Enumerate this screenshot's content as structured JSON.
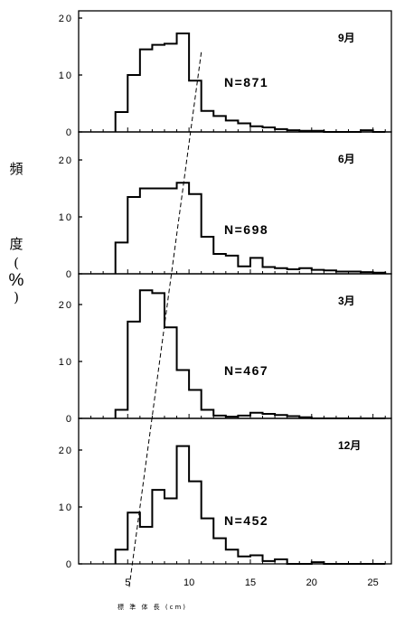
{
  "ylabel": [
    "頻",
    "度",
    "(",
    "%",
    ")"
  ],
  "xlabel": "標 準 体 長 (cm)",
  "chart_data": [
    {
      "type": "bar",
      "month": "9月",
      "n_label": "N=871",
      "ylim": [
        0,
        20
      ],
      "yticks": [
        "0",
        "10",
        "20"
      ],
      "bins": [
        4,
        5,
        6,
        7,
        8,
        9,
        10,
        11,
        12,
        13,
        14,
        15,
        16,
        17,
        18,
        19,
        20,
        21,
        22,
        23,
        24,
        25
      ],
      "values": [
        3.5,
        10,
        14.5,
        15.3,
        15.5,
        17.3,
        9,
        3.7,
        2.8,
        2,
        1.5,
        1,
        0.8,
        0.5,
        0.3,
        0.2,
        0.2,
        0,
        0,
        0,
        0.3,
        0
      ]
    },
    {
      "type": "bar",
      "month": "6月",
      "n_label": "N=698",
      "ylim": [
        0,
        20
      ],
      "yticks": [
        "0",
        "10",
        "20"
      ],
      "bins": [
        4,
        5,
        6,
        7,
        8,
        9,
        10,
        11,
        12,
        13,
        14,
        15,
        16,
        17,
        18,
        19,
        20,
        21,
        22,
        23,
        24,
        25
      ],
      "values": [
        5.5,
        13.5,
        15,
        15,
        15,
        16,
        14,
        6.5,
        3.5,
        3.2,
        1.3,
        2.8,
        1.2,
        1,
        0.8,
        1,
        0.7,
        0.6,
        0.4,
        0.4,
        0.3,
        0.2
      ]
    },
    {
      "type": "bar",
      "month": "3月",
      "n_label": "N=467",
      "ylim": [
        0,
        20
      ],
      "yticks": [
        "0",
        "10",
        "20"
      ],
      "bins": [
        4,
        5,
        6,
        7,
        8,
        9,
        10,
        11,
        12,
        13,
        14,
        15,
        16,
        17,
        18,
        19,
        20,
        21,
        22,
        23,
        24,
        25
      ],
      "values": [
        1.5,
        17,
        22.5,
        22,
        16,
        8.5,
        5,
        1.5,
        0.5,
        0.3,
        0.5,
        1,
        0.8,
        0.6,
        0.4,
        0.2,
        0,
        0,
        0,
        0,
        0,
        0
      ]
    },
    {
      "type": "bar",
      "month": "12月",
      "n_label": "N=452",
      "ylim": [
        0,
        20
      ],
      "yticks": [
        "0",
        "10",
        "20"
      ],
      "bins": [
        4,
        5,
        6,
        7,
        8,
        9,
        10,
        11,
        12,
        13,
        14,
        15,
        16,
        17,
        18,
        19,
        20,
        21,
        22,
        23,
        24,
        25
      ],
      "values": [
        2.5,
        9,
        6.5,
        13,
        11.5,
        20.7,
        14.5,
        8,
        4.5,
        2.5,
        1.3,
        1.5,
        0.5,
        0.8,
        0,
        0,
        0.3,
        0,
        0,
        0,
        0,
        0
      ]
    }
  ],
  "xaxis": {
    "range": [
      1,
      26.5
    ],
    "ticks": [
      5,
      10,
      15,
      20,
      25
    ]
  },
  "trend_line": {
    "points": [
      [
        11.0,
        14.0
      ],
      [
        5.1,
        -1.0
      ]
    ]
  }
}
